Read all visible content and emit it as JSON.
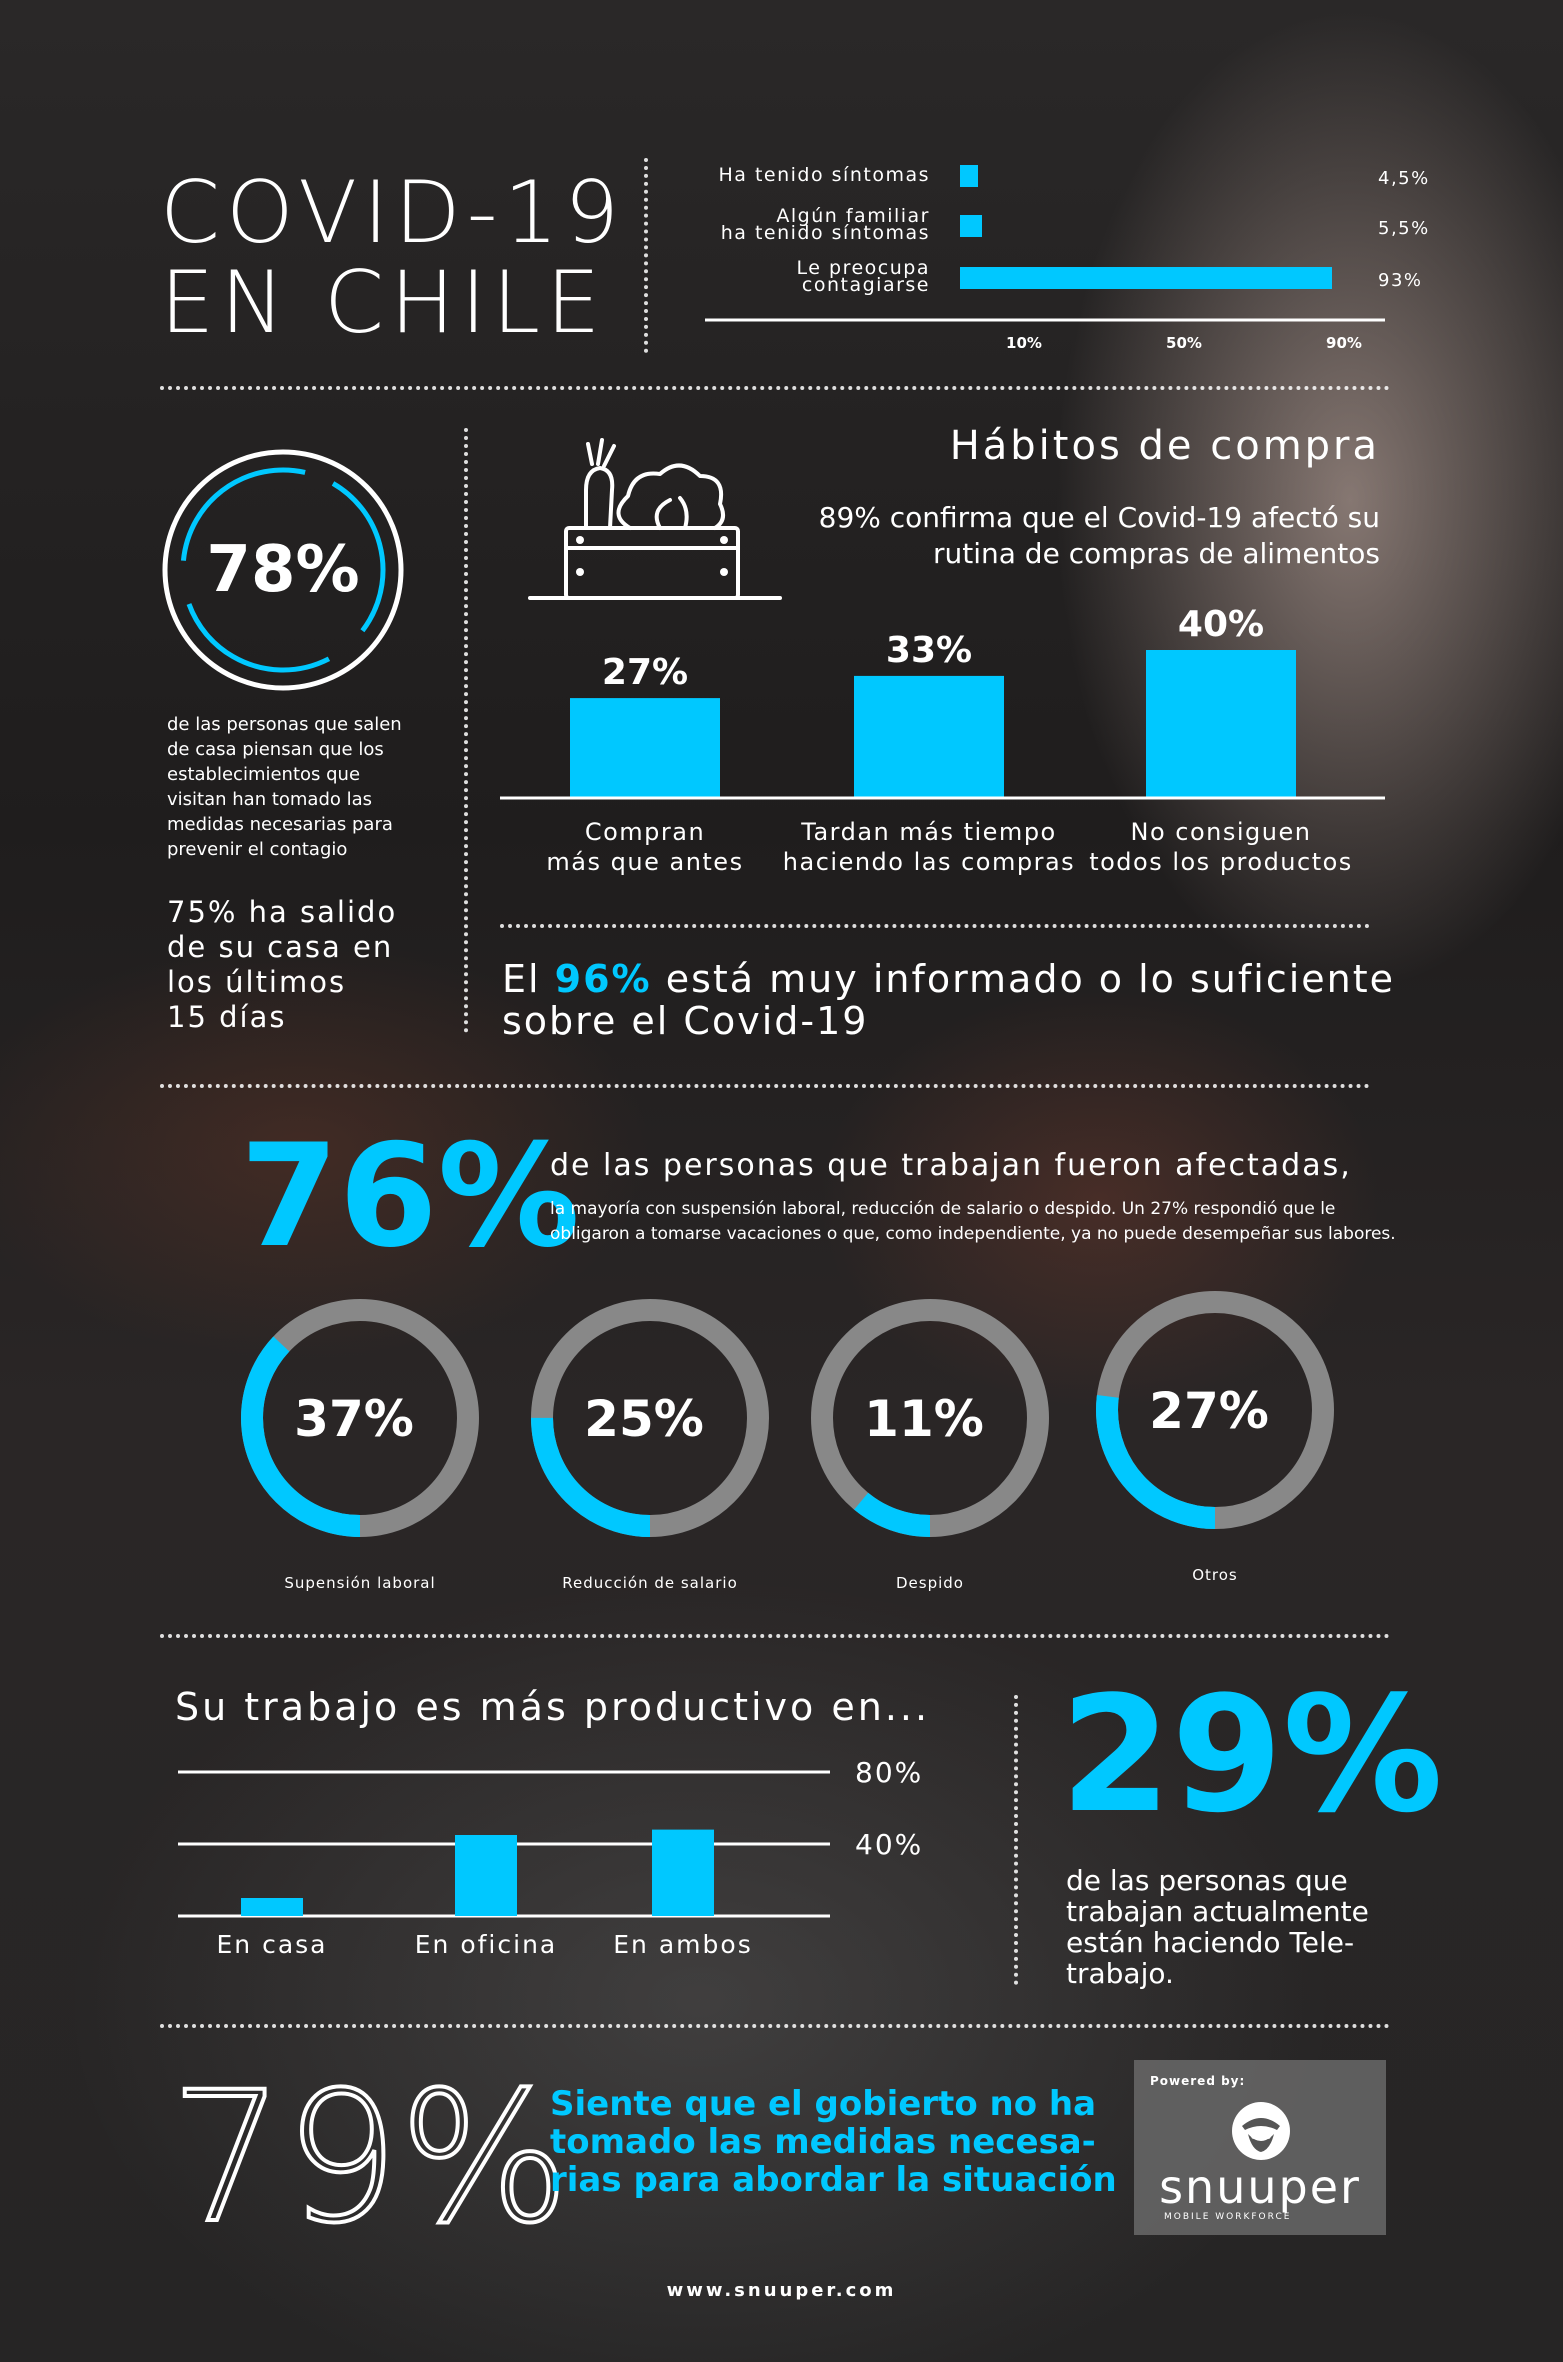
{
  "header": {
    "title_line1": "COVID-19",
    "title_line2": "EN CHILE"
  },
  "chart_symptoms": {
    "type": "bar",
    "orientation": "horizontal",
    "categories": [
      "Ha tenido síntomas",
      "Algún familiar ha tenido síntomas",
      "Le preocupa contagiarse"
    ],
    "category_lines": [
      [
        "Ha tenido síntomas"
      ],
      [
        "Algún familiar",
        "ha tenido síntomas"
      ],
      [
        "Le preocupa",
        "contagiarse"
      ]
    ],
    "values": [
      4.5,
      5.5,
      93
    ],
    "value_labels": [
      "4,5%",
      "5,5%",
      "93%"
    ],
    "ticks": [
      10,
      50,
      90
    ],
    "tick_labels": [
      "10%",
      "50%",
      "90%"
    ],
    "xlim": [
      0,
      100
    ],
    "color": "#00c8ff"
  },
  "left_stats": {
    "circle_value": "78%",
    "circle_text": "de las personas que salen de casa piensan que los establecimientos que visitan han tomado las medidas necesarias para prevenir el contagio",
    "outing_text_lines": [
      "75% ha salido",
      "de su casa en",
      "los últimos",
      "15 días"
    ]
  },
  "shopping": {
    "title": "Hábitos de compra",
    "subtitle_lines": [
      "89% confirma que el Covid-19 afectó su",
      "rutina de compras de alimentos"
    ],
    "icon": "grocery-crate-icon"
  },
  "chart_shopping": {
    "type": "bar",
    "categories": [
      "Compran más que antes",
      "Tardan más tiempo haciendo las compras",
      "No consiguen todos los productos"
    ],
    "category_lines": [
      [
        "Compran",
        "más que antes"
      ],
      [
        "Tardan más tiempo",
        "haciendo las compras"
      ],
      [
        "No consiguen",
        "todos los productos"
      ]
    ],
    "values": [
      27,
      33,
      40
    ],
    "value_labels": [
      "27%",
      "33%",
      "40%"
    ],
    "ylim": [
      0,
      40
    ],
    "color": "#00c8ff"
  },
  "informed": {
    "prefix": "El ",
    "highlight": "96%",
    "suffix": " está muy informado o lo suficiente",
    "line2": "sobre el Covid-19"
  },
  "work": {
    "big_value": "76%",
    "headline": "de las personas que trabajan fueron afectadas,",
    "detail_lines": [
      "la mayoría con suspensión laboral, reducción de salario o despido. Un 27% respondió que le",
      "obligaron a tomarse vacaciones o que, como independiente, ya no puede desempeñar sus labores."
    ]
  },
  "chart_work": {
    "type": "pie",
    "style": "donut",
    "categories": [
      "Supensión laboral",
      "Reducción de salario",
      "Despido",
      "Otros"
    ],
    "values": [
      37,
      25,
      11,
      27
    ],
    "value_labels": [
      "37%",
      "25%",
      "11%",
      "27%"
    ],
    "color": "#00c8ff",
    "track_color": "#888888"
  },
  "productive": {
    "title": "Su trabajo es más productivo en..."
  },
  "chart_productive": {
    "type": "bar",
    "categories": [
      "En casa",
      "En oficina",
      "En ambos"
    ],
    "values": [
      10,
      45,
      48
    ],
    "ticks": [
      40,
      80
    ],
    "tick_labels": [
      "40%",
      "80%"
    ],
    "ylim": [
      0,
      80
    ],
    "color": "#00c8ff"
  },
  "telework": {
    "value": "29%",
    "text_lines": [
      "de las personas que",
      "trabajan actualmente",
      "están haciendo Tele-",
      "trabajo."
    ]
  },
  "government": {
    "value": "79%",
    "text_lines": [
      "Siente que el gobierto no ha",
      "tomado las medidas necesa-",
      "rias para abordar la situación"
    ]
  },
  "brand": {
    "powered_by": "Powered by:",
    "name": "snuuper",
    "tagline": "MOBILE WORKFORCE",
    "icon": "snuuper-logo-icon"
  },
  "footer": {
    "url": "www.snuuper.com"
  }
}
